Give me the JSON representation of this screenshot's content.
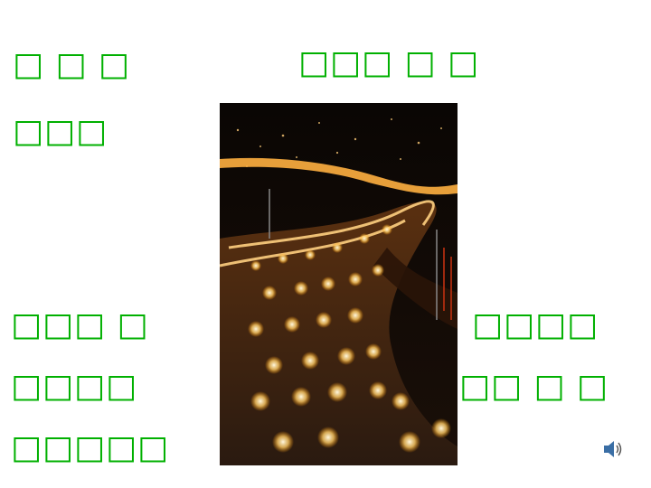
{
  "slide": {
    "top_left_line1": "□ □ □",
    "top_left_line2": "□□□",
    "top_right": "□□□ □ □",
    "bottom_left_line1": "□□□ □",
    "bottom_left_line2": "□□□□",
    "bottom_left_line3": "□□□□□",
    "bottom_right_line1": "□□□□",
    "bottom_right_line2": "□□ □ □"
  },
  "colors": {
    "text": "#00b000"
  },
  "icons": {
    "speaker": "speaker-icon"
  }
}
